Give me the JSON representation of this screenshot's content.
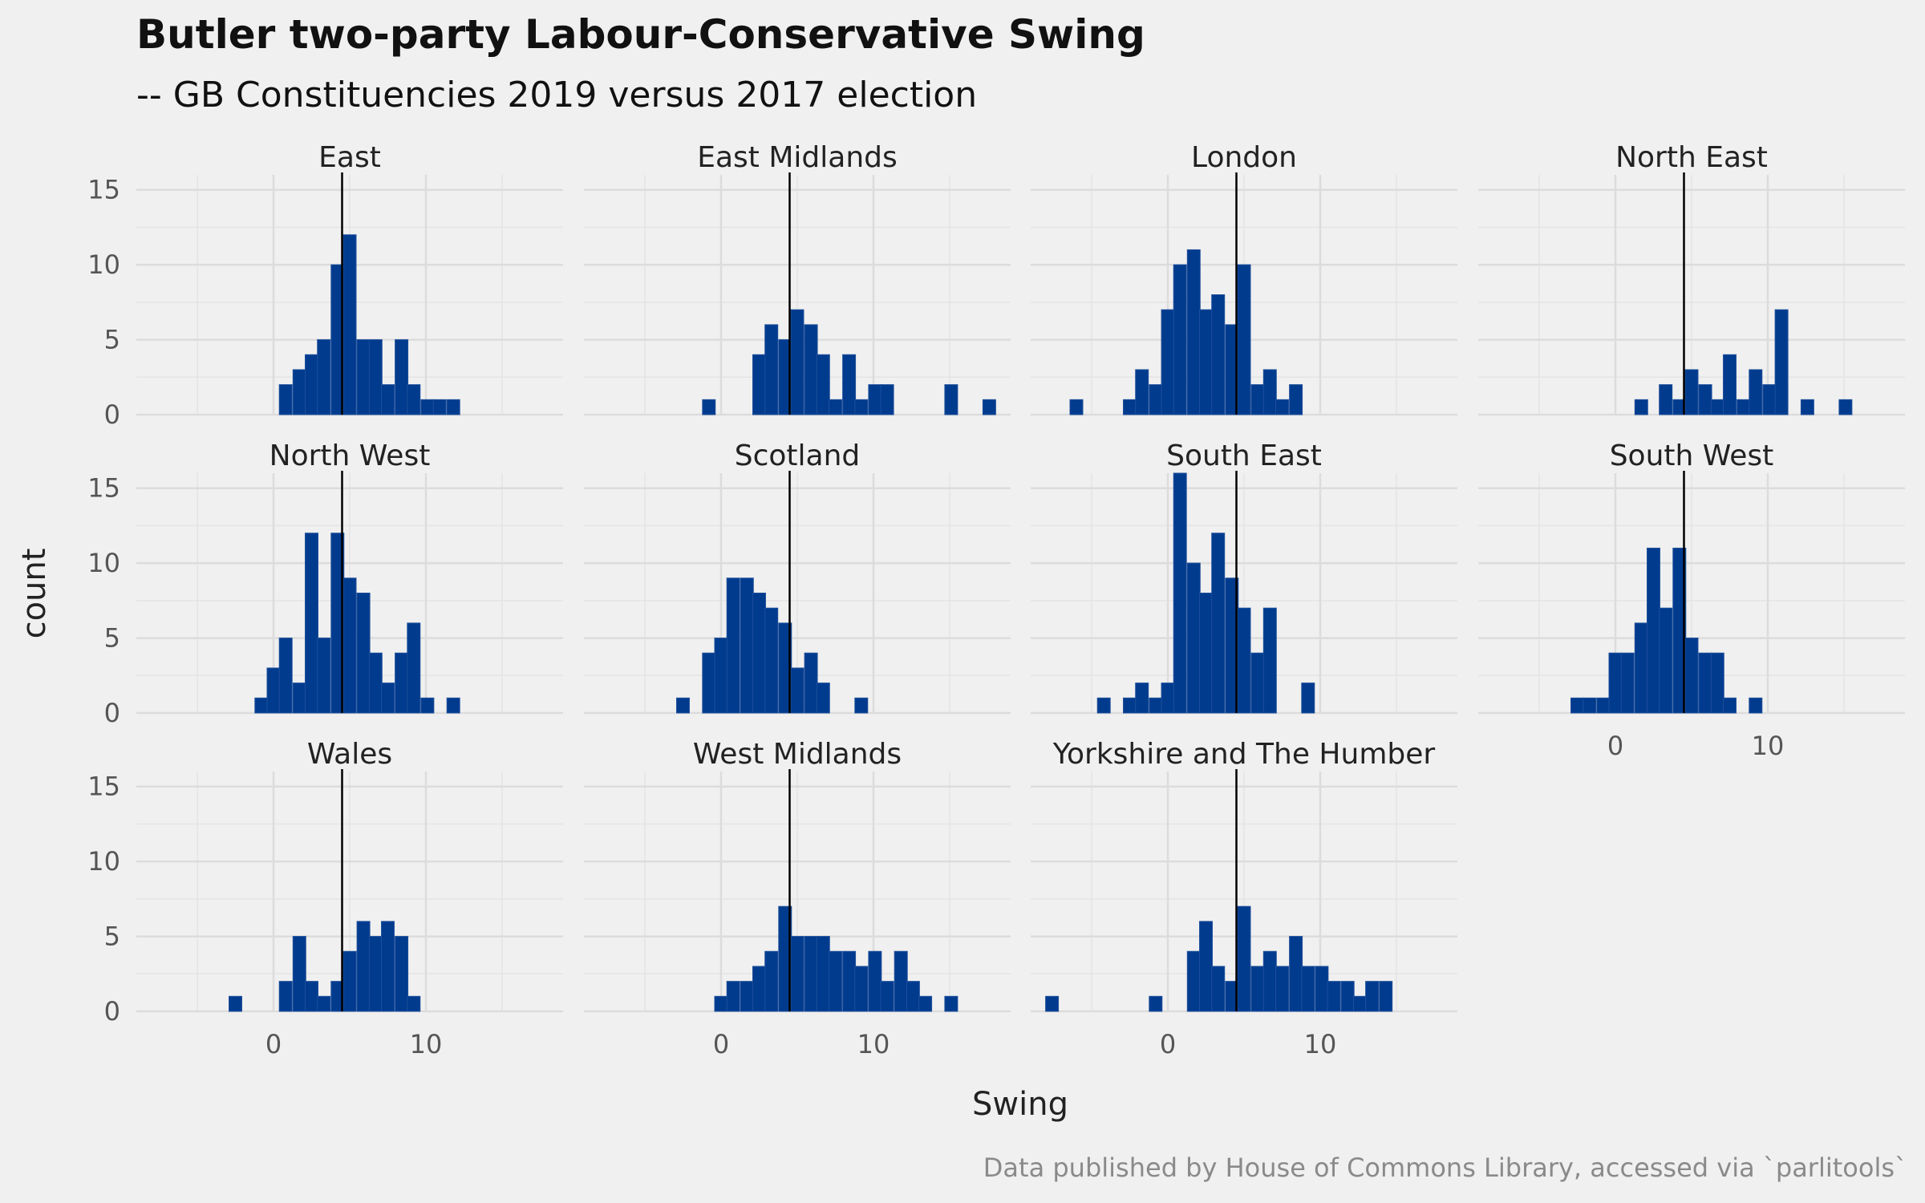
{
  "chart_data": {
    "type": "bar",
    "chart_kind": "faceted histogram",
    "title": "Butler two-party Labour-Conservative Swing",
    "subtitle": "-- GB Constituencies 2019 versus 2017 election",
    "xlabel": "Swing",
    "ylabel": "count",
    "caption": "Data published by House of Commons Library, accessed via `parlitools`",
    "xlim": [
      -9,
      19
    ],
    "ylim": [
      0,
      16
    ],
    "x_ticks": [
      0,
      10
    ],
    "y_ticks": [
      0,
      5,
      10,
      15
    ],
    "bin_width": 0.84,
    "reference_line_x": 4.5,
    "grid": true,
    "legend": "none",
    "colors": {
      "bar_fill": "#003b8e",
      "bar_outline": "#1e4f9a",
      "reference_line": "#000000",
      "background": "#f0f0f0",
      "grid": "#dcdcdc"
    },
    "panels": [
      {
        "name": "East",
        "bins": [
          [
            0.8,
            2
          ],
          [
            1.7,
            3
          ],
          [
            2.5,
            4
          ],
          [
            3.3,
            5
          ],
          [
            4.2,
            10
          ],
          [
            5.0,
            12
          ],
          [
            5.9,
            5
          ],
          [
            6.7,
            5
          ],
          [
            7.5,
            2
          ],
          [
            8.4,
            5
          ],
          [
            9.2,
            2
          ],
          [
            10.1,
            1
          ],
          [
            10.9,
            1
          ],
          [
            11.8,
            1
          ]
        ]
      },
      {
        "name": "East Midlands",
        "bins": [
          [
            -0.8,
            1
          ],
          [
            2.5,
            4
          ],
          [
            3.3,
            6
          ],
          [
            4.2,
            5
          ],
          [
            5.0,
            7
          ],
          [
            5.9,
            6
          ],
          [
            6.7,
            4
          ],
          [
            7.5,
            1
          ],
          [
            8.4,
            4
          ],
          [
            9.2,
            1
          ],
          [
            10.1,
            2
          ],
          [
            10.9,
            2
          ],
          [
            15.1,
            2
          ],
          [
            17.6,
            1
          ]
        ]
      },
      {
        "name": "London",
        "bins": [
          [
            -6.0,
            1
          ],
          [
            -2.5,
            1
          ],
          [
            -1.7,
            3
          ],
          [
            -0.8,
            2
          ],
          [
            0.0,
            7
          ],
          [
            0.8,
            10
          ],
          [
            1.7,
            11
          ],
          [
            2.5,
            7
          ],
          [
            3.3,
            8
          ],
          [
            4.2,
            6
          ],
          [
            5.0,
            10
          ],
          [
            5.9,
            2
          ],
          [
            6.7,
            3
          ],
          [
            7.5,
            1
          ],
          [
            8.4,
            2
          ]
        ]
      },
      {
        "name": "North East",
        "bins": [
          [
            1.7,
            1
          ],
          [
            3.3,
            2
          ],
          [
            4.2,
            1
          ],
          [
            5.0,
            3
          ],
          [
            5.9,
            2
          ],
          [
            6.7,
            1
          ],
          [
            7.5,
            4
          ],
          [
            8.4,
            1
          ],
          [
            9.2,
            3
          ],
          [
            10.1,
            2
          ],
          [
            10.9,
            7
          ],
          [
            12.6,
            1
          ],
          [
            15.1,
            1
          ]
        ]
      },
      {
        "name": "North West",
        "bins": [
          [
            -0.8,
            1
          ],
          [
            0.0,
            3
          ],
          [
            0.8,
            5
          ],
          [
            1.7,
            2
          ],
          [
            2.5,
            12
          ],
          [
            3.3,
            5
          ],
          [
            4.2,
            12
          ],
          [
            5.0,
            9
          ],
          [
            5.9,
            8
          ],
          [
            6.7,
            4
          ],
          [
            7.5,
            2
          ],
          [
            8.4,
            4
          ],
          [
            9.2,
            6
          ],
          [
            10.1,
            1
          ],
          [
            11.8,
            1
          ]
        ]
      },
      {
        "name": "Scotland",
        "bins": [
          [
            -2.5,
            1
          ],
          [
            -0.8,
            4
          ],
          [
            0.0,
            5
          ],
          [
            0.8,
            9
          ],
          [
            1.7,
            9
          ],
          [
            2.5,
            8
          ],
          [
            3.3,
            7
          ],
          [
            4.2,
            6
          ],
          [
            5.0,
            3
          ],
          [
            5.9,
            4
          ],
          [
            6.7,
            2
          ],
          [
            9.2,
            1
          ]
        ]
      },
      {
        "name": "South East",
        "bins": [
          [
            -4.2,
            1
          ],
          [
            -2.5,
            1
          ],
          [
            -1.7,
            2
          ],
          [
            -0.8,
            1
          ],
          [
            0.0,
            2
          ],
          [
            0.8,
            16
          ],
          [
            1.7,
            10
          ],
          [
            2.5,
            8
          ],
          [
            3.3,
            12
          ],
          [
            4.2,
            9
          ],
          [
            5.0,
            7
          ],
          [
            5.9,
            4
          ],
          [
            6.7,
            7
          ],
          [
            9.2,
            2
          ]
        ]
      },
      {
        "name": "South West",
        "bins": [
          [
            -2.5,
            1
          ],
          [
            -1.7,
            1
          ],
          [
            -0.8,
            1
          ],
          [
            0.0,
            4
          ],
          [
            0.8,
            4
          ],
          [
            1.7,
            6
          ],
          [
            2.5,
            11
          ],
          [
            3.3,
            7
          ],
          [
            4.2,
            11
          ],
          [
            5.0,
            5
          ],
          [
            5.9,
            4
          ],
          [
            6.7,
            4
          ],
          [
            7.5,
            1
          ],
          [
            9.2,
            1
          ]
        ]
      },
      {
        "name": "Wales",
        "bins": [
          [
            -2.5,
            1
          ],
          [
            0.8,
            2
          ],
          [
            1.7,
            5
          ],
          [
            2.5,
            2
          ],
          [
            3.3,
            1
          ],
          [
            4.2,
            2
          ],
          [
            5.0,
            4
          ],
          [
            5.9,
            6
          ],
          [
            6.7,
            5
          ],
          [
            7.5,
            6
          ],
          [
            8.4,
            5
          ],
          [
            9.2,
            1
          ]
        ]
      },
      {
        "name": "West Midlands",
        "bins": [
          [
            0.0,
            1
          ],
          [
            0.8,
            2
          ],
          [
            1.7,
            2
          ],
          [
            2.5,
            3
          ],
          [
            3.3,
            4
          ],
          [
            4.2,
            7
          ],
          [
            5.0,
            5
          ],
          [
            5.9,
            5
          ],
          [
            6.7,
            5
          ],
          [
            7.5,
            4
          ],
          [
            8.4,
            4
          ],
          [
            9.2,
            3
          ],
          [
            10.1,
            4
          ],
          [
            10.9,
            2
          ],
          [
            11.8,
            4
          ],
          [
            12.6,
            2
          ],
          [
            13.4,
            1
          ],
          [
            15.1,
            1
          ]
        ]
      },
      {
        "name": "Yorkshire and The Humber",
        "bins": [
          [
            -7.6,
            1
          ],
          [
            -0.8,
            1
          ],
          [
            1.7,
            4
          ],
          [
            2.5,
            6
          ],
          [
            3.3,
            3
          ],
          [
            4.2,
            2
          ],
          [
            5.0,
            7
          ],
          [
            5.9,
            3
          ],
          [
            6.7,
            4
          ],
          [
            7.5,
            3
          ],
          [
            8.4,
            5
          ],
          [
            9.2,
            3
          ],
          [
            10.1,
            3
          ],
          [
            10.9,
            2
          ],
          [
            11.8,
            2
          ],
          [
            12.6,
            1
          ],
          [
            13.4,
            2
          ],
          [
            14.3,
            2
          ]
        ]
      }
    ]
  }
}
